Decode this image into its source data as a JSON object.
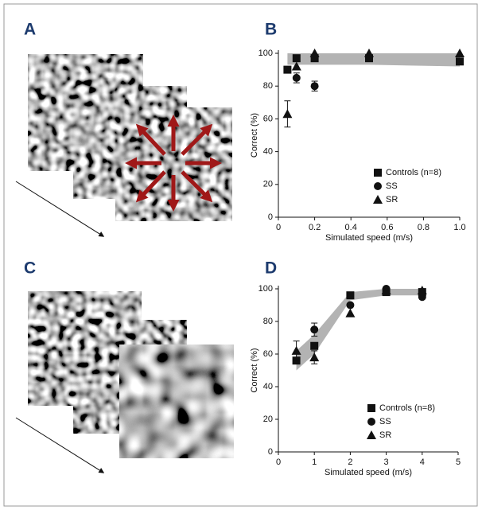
{
  "panel_labels": [
    "A",
    "B",
    "C",
    "D"
  ],
  "chart_data": [
    {
      "type": "scatter",
      "xlabel": "Simulated speed (m/s)",
      "ylabel": "Correct (%)",
      "xlim": [
        0,
        1
      ],
      "xticks": [
        0,
        0.2,
        0.4,
        0.6,
        0.8,
        {
          "value": 1,
          "label": "1.0"
        }
      ],
      "ylim": [
        0,
        100
      ],
      "yticks": [
        0,
        20,
        40,
        60,
        80,
        100
      ],
      "legend": "lower right",
      "band": {
        "color": "#b3b3b3",
        "x": [
          0.05,
          0.1,
          0.2,
          0.5,
          1
        ],
        "lower": [
          93,
          93,
          93,
          93,
          92
        ],
        "upper": [
          100,
          100,
          100,
          100,
          100
        ]
      },
      "series": [
        {
          "name": "Controls (n=8)",
          "marker": "square",
          "color": "#111111",
          "x": [
            0.05,
            0.1,
            0.2,
            0.5,
            1
          ],
          "values": [
            90,
            97,
            97,
            97,
            95
          ],
          "errors": [
            null,
            null,
            null,
            null,
            null
          ]
        },
        {
          "name": "SS",
          "marker": "circle",
          "color": "#111111",
          "x": [
            0.1,
            0.2
          ],
          "values": [
            85,
            80
          ],
          "errors": [
            3,
            3
          ]
        },
        {
          "name": "SR",
          "marker": "triangle",
          "color": "#111111",
          "x": [
            0.05,
            0.1,
            0.2,
            0.5,
            1
          ],
          "values": [
            63,
            92,
            100,
            100,
            100
          ],
          "errors": [
            8,
            null,
            null,
            null,
            null
          ]
        }
      ]
    },
    {
      "type": "scatter",
      "xlabel": "Simulated speed (m/s)",
      "ylabel": "Correct (%)",
      "xlim": [
        0,
        5
      ],
      "xticks": [
        0,
        1,
        2,
        3,
        4,
        5
      ],
      "ylim": [
        0,
        100
      ],
      "yticks": [
        0,
        20,
        40,
        60,
        80,
        100
      ],
      "legend": "lower right",
      "band": {
        "color": "#b3b3b3",
        "x": [
          0.5,
          1,
          2,
          3,
          4
        ],
        "lower": [
          50,
          60,
          93,
          96,
          96
        ],
        "upper": [
          62,
          72,
          98,
          100,
          100
        ]
      },
      "series": [
        {
          "name": "Controls (n=8)",
          "marker": "square",
          "color": "#111111",
          "x": [
            0.5,
            1,
            2,
            3,
            4
          ],
          "values": [
            56,
            65,
            96,
            98,
            98
          ],
          "errors": [
            null,
            null,
            null,
            null,
            null
          ]
        },
        {
          "name": "SS",
          "marker": "circle",
          "color": "#111111",
          "x": [
            1,
            2,
            3,
            4
          ],
          "values": [
            75,
            90,
            100,
            95
          ],
          "errors": [
            4,
            null,
            null,
            null
          ]
        },
        {
          "name": "SR",
          "marker": "triangle",
          "color": "#111111",
          "x": [
            0.5,
            1,
            2,
            3,
            4
          ],
          "values": [
            62,
            58,
            85,
            99,
            99
          ],
          "errors": [
            6,
            4,
            null,
            null,
            null
          ]
        }
      ]
    }
  ]
}
